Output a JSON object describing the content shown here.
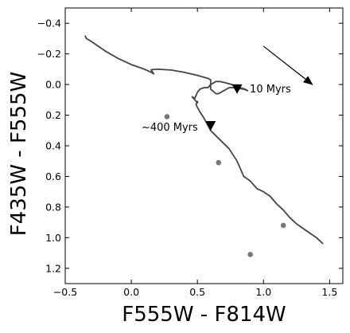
{
  "chart_data": {
    "type": "line",
    "title": "",
    "xlabel": "F555W - F814W",
    "ylabel": "F435W - F555W",
    "xlim": [
      -0.5,
      1.6
    ],
    "ylim": [
      1.3,
      -0.5
    ],
    "y_inverted": true,
    "grid": false,
    "legend": "none",
    "xticks": [
      -0.5,
      0.0,
      0.5,
      1.0,
      1.5
    ],
    "xtick_labels": [
      "−0.5",
      "0.0",
      "0.5",
      "1.0",
      "1.5"
    ],
    "yticks": [
      -0.4,
      -0.2,
      0.0,
      0.2,
      0.4,
      0.6,
      0.8,
      1.0,
      1.2
    ],
    "ytick_labels": [
      "−0.4",
      "−0.2",
      "0.0",
      "0.2",
      "0.4",
      "0.6",
      "0.8",
      "1.0",
      "1.2"
    ],
    "series": [
      {
        "kind": "track",
        "color": "#444444",
        "x": [
          -0.35,
          -0.34,
          -0.3,
          -0.2,
          -0.1,
          0.0,
          0.1,
          0.15,
          0.17,
          0.15,
          0.16,
          0.2,
          0.3,
          0.4,
          0.5,
          0.58,
          0.6,
          0.6,
          0.64,
          0.66,
          0.68,
          0.7,
          0.72,
          0.74,
          0.77,
          0.8,
          0.85,
          0.88,
          0.86,
          0.82,
          0.76,
          0.72,
          0.67,
          0.64,
          0.62,
          0.6,
          0.58,
          0.55,
          0.52,
          0.5,
          0.48,
          0.46,
          0.48,
          0.5,
          0.5,
          0.49,
          0.5,
          0.52,
          0.55,
          0.6,
          0.67,
          0.74,
          0.8,
          0.85,
          0.9,
          0.95,
          1.0,
          1.05,
          1.1,
          1.15,
          1.2,
          1.25,
          1.3,
          1.35,
          1.4,
          1.45
        ],
        "y": [
          -0.32,
          -0.3,
          -0.28,
          -0.22,
          -0.17,
          -0.13,
          -0.1,
          -0.08,
          -0.07,
          -0.095,
          -0.098,
          -0.1,
          -0.095,
          -0.08,
          -0.06,
          -0.04,
          -0.03,
          0.03,
          0.06,
          0.06,
          0.05,
          0.04,
          0.03,
          0.02,
          0.02,
          0.025,
          0.03,
          0.04,
          0.03,
          0.02,
          0.0,
          -0.01,
          -0.02,
          -0.02,
          -0.01,
          0.0,
          0.02,
          0.02,
          0.03,
          0.05,
          0.09,
          0.08,
          0.1,
          0.12,
          0.11,
          0.13,
          0.15,
          0.18,
          0.22,
          0.3,
          0.36,
          0.42,
          0.5,
          0.6,
          0.63,
          0.68,
          0.7,
          0.73,
          0.78,
          0.82,
          0.87,
          0.91,
          0.94,
          0.97,
          1.0,
          1.04
        ]
      }
    ],
    "points": [
      {
        "x": 0.27,
        "y": 0.21
      },
      {
        "x": 0.66,
        "y": 0.51
      },
      {
        "x": 1.15,
        "y": 0.92
      },
      {
        "x": 0.9,
        "y": 1.11
      }
    ],
    "markers": [
      {
        "x": 0.8,
        "y": 0.03,
        "label": "10 Myrs",
        "label_side": "right"
      },
      {
        "x": 0.6,
        "y": 0.27,
        "label": "~400 Myrs",
        "label_side": "left"
      }
    ],
    "arrow": {
      "x1": 1.0,
      "y1": -0.25,
      "x2": 1.37,
      "y2": 0.0
    }
  }
}
